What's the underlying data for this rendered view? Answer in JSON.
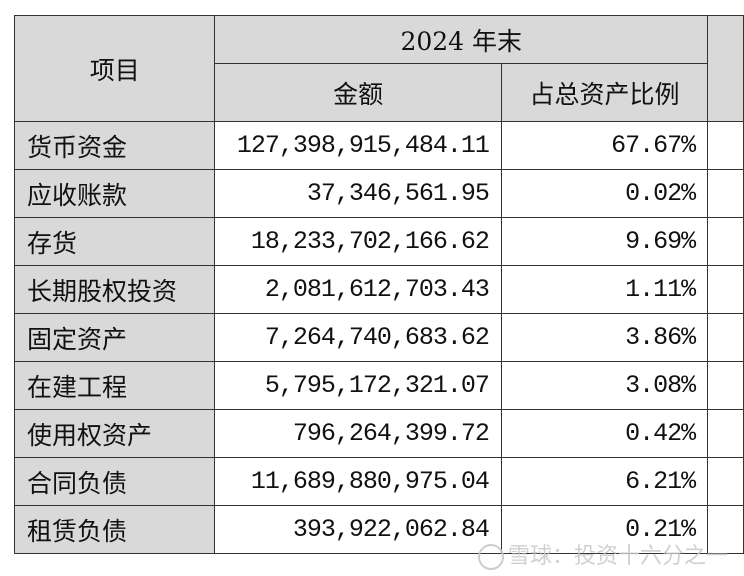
{
  "table": {
    "header": {
      "item": "项目",
      "period": "2024 年末",
      "amount": "金额",
      "ratio": "占总资产比例"
    },
    "rows": [
      {
        "item": "货币资金",
        "amount": "127,398,915,484.11",
        "ratio": "67.67%"
      },
      {
        "item": "应收账款",
        "amount": "37,346,561.95",
        "ratio": "0.02%"
      },
      {
        "item": "存货",
        "amount": "18,233,702,166.62",
        "ratio": "9.69%"
      },
      {
        "item": "长期股权投资",
        "amount": "2,081,612,703.43",
        "ratio": "1.11%"
      },
      {
        "item": "固定资产",
        "amount": "7,264,740,683.62",
        "ratio": "3.86%"
      },
      {
        "item": "在建工程",
        "amount": "5,795,172,321.07",
        "ratio": "3.08%"
      },
      {
        "item": "使用权资产",
        "amount": "796,264,399.72",
        "ratio": "0.42%"
      },
      {
        "item": "合同负债",
        "amount": "11,689,880,975.04",
        "ratio": "6.21%"
      },
      {
        "item": "租赁负债",
        "amount": "393,922,062.84",
        "ratio": "0.21%"
      }
    ]
  },
  "watermark": "雪球：投资十六分之一",
  "colors": {
    "header_bg": "#d9d9d9",
    "border": "#333333"
  }
}
